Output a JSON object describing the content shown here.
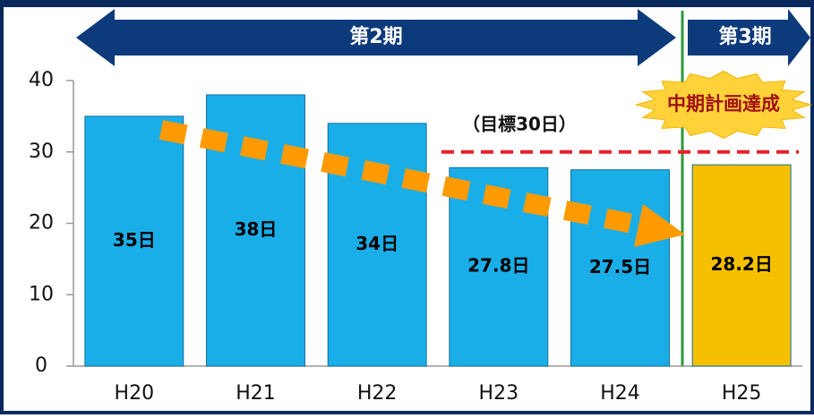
{
  "chart_data": {
    "type": "bar",
    "categories": [
      "H20",
      "H21",
      "H22",
      "H23",
      "H24",
      "H25"
    ],
    "values": [
      35,
      38,
      34,
      27.8,
      27.5,
      28.2
    ],
    "value_labels": [
      "35日",
      "38日",
      "34日",
      "27.8日",
      "27.5日",
      "28.2日"
    ],
    "colors": [
      "#1aaee8",
      "#1aaee8",
      "#1aaee8",
      "#1aaee8",
      "#1aaee8",
      "#f5c000"
    ],
    "ylim": [
      0,
      40
    ],
    "yticks": [
      0,
      10,
      20,
      30,
      40
    ],
    "target": {
      "label": "（目標30日）",
      "value": 30
    },
    "periods": [
      "第2期",
      "第3期"
    ],
    "burst": "中期計画達成"
  }
}
